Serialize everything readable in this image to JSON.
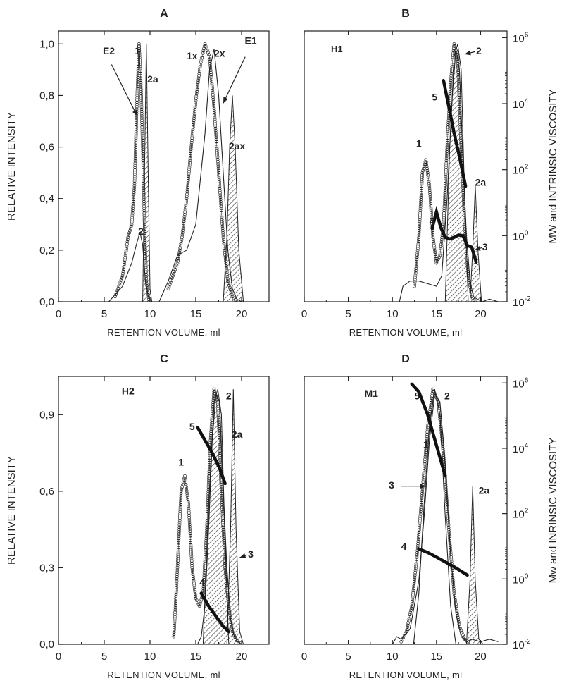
{
  "chart_data": [
    {
      "panel": "A",
      "type": "line",
      "tag": "",
      "xlabel": "RETENTION VOLUME, ml",
      "ylabel": "RELATIVE INTENSITY",
      "xlim": [
        0,
        23
      ],
      "ylim": [
        0,
        1.05
      ],
      "xticks": [
        0,
        5,
        10,
        15,
        20
      ],
      "xticklabels": [
        "0",
        "5",
        "10",
        "15",
        "20"
      ],
      "yticks": [
        0,
        0.2,
        0.4,
        0.6,
        0.8,
        1.0
      ],
      "yticklabels": [
        "0,0",
        "0,2",
        "0,4",
        "0,6",
        "0,8",
        "1,0"
      ],
      "series": [
        {
          "key": "s1",
          "style": "circles",
          "x": [
            6.2,
            7,
            7.6,
            8,
            8.3,
            8.6,
            8.8,
            9.0,
            9.2,
            9.4,
            9.6,
            9.9
          ],
          "y": [
            0.02,
            0.1,
            0.25,
            0.3,
            0.45,
            0.8,
            1.0,
            0.85,
            0.6,
            0.3,
            0.08,
            0.0
          ]
        },
        {
          "key": "s2",
          "style": "thin",
          "x": [
            5.5,
            6,
            7,
            8,
            8.5,
            8.9,
            9.2,
            9.5,
            9.8,
            10.2,
            11,
            12,
            13,
            14,
            15,
            16,
            16.5,
            17,
            17.5,
            18,
            18.5,
            19,
            19.5,
            20,
            20.5
          ],
          "y": [
            0.0,
            0.02,
            0.06,
            0.15,
            0.22,
            0.27,
            0.22,
            0.08,
            0.02,
            0.0,
            0.0,
            0.08,
            0.18,
            0.2,
            0.3,
            0.65,
            0.9,
            0.98,
            0.8,
            0.5,
            0.2,
            0.05,
            0.01,
            0.0,
            0.0
          ]
        },
        {
          "key": "s3",
          "style": "hatched",
          "x": [
            9.2,
            9.4,
            9.6,
            9.8,
            10.0,
            10.2
          ],
          "y": [
            0.0,
            0.5,
            1.0,
            0.5,
            0.05,
            0.0
          ]
        },
        {
          "key": "s4",
          "style": "hatched",
          "x": [
            18,
            18.4,
            18.7,
            19.0,
            19.3,
            19.7,
            20.2
          ],
          "y": [
            0.0,
            0.25,
            0.6,
            0.8,
            0.6,
            0.2,
            0.0
          ]
        },
        {
          "key": "s5",
          "style": "circles",
          "x": [
            12,
            12.5,
            13,
            13.5,
            14,
            14.5,
            15,
            15.5,
            16,
            16.5,
            17,
            17.5,
            18,
            18.5,
            19,
            19.5
          ],
          "y": [
            0.05,
            0.1,
            0.15,
            0.25,
            0.4,
            0.6,
            0.78,
            0.92,
            1.0,
            0.95,
            0.75,
            0.5,
            0.25,
            0.08,
            0.02,
            0.0
          ]
        }
      ],
      "annotations": [
        {
          "text": "E2",
          "x": 5.5,
          "y": 0.96
        },
        {
          "text": "1",
          "x": 8.6,
          "y": 0.96
        },
        {
          "text": "2a",
          "x": 10.3,
          "y": 0.85
        },
        {
          "text": "1x",
          "x": 14.6,
          "y": 0.94
        },
        {
          "text": "2x",
          "x": 17.6,
          "y": 0.95
        },
        {
          "text": "E1",
          "x": 21.0,
          "y": 1.0
        },
        {
          "text": "2ax",
          "x": 19.5,
          "y": 0.59
        },
        {
          "text": "2",
          "x": 9.0,
          "y": 0.26
        }
      ],
      "arrows": [
        {
          "x1": 5.8,
          "y1": 0.92,
          "x2": 8.6,
          "y2": 0.72
        },
        {
          "x1": 20.4,
          "y1": 0.95,
          "x2": 18.0,
          "y2": 0.77
        }
      ]
    },
    {
      "panel": "B",
      "type": "line",
      "tag": "H1",
      "xlabel": "RETENTION VOLUME, ml",
      "ylabel": "",
      "y2label": "MW and INTRINSIC VISCOSITY",
      "xlim": [
        0,
        23
      ],
      "ylim": [
        0,
        1.05
      ],
      "xticks": [
        0,
        5,
        10,
        15,
        20
      ],
      "xticklabels": [
        "0",
        "5",
        "10",
        "15",
        "20"
      ],
      "y2ticks": [
        -2,
        0,
        2,
        4,
        6
      ],
      "y2ticklabels": [
        {
          "base": "10",
          "exp": "-2"
        },
        {
          "base": "10",
          "exp": "0"
        },
        {
          "base": "10",
          "exp": "2"
        },
        {
          "base": "10",
          "exp": "4"
        },
        {
          "base": "10",
          "exp": "6"
        }
      ],
      "y2lim": [
        -2,
        6.2
      ],
      "series": [
        {
          "key": "s1",
          "style": "circles",
          "x": [
            12.5,
            13,
            13.4,
            13.8,
            14.2,
            14.6,
            15,
            15.4,
            15.8,
            16.2,
            16.6,
            17,
            17.4,
            17.8,
            18.2,
            18.6,
            19,
            19.4
          ],
          "y": [
            0.06,
            0.25,
            0.5,
            0.55,
            0.45,
            0.25,
            0.15,
            0.18,
            0.3,
            0.6,
            0.85,
            1.0,
            0.95,
            0.6,
            0.3,
            0.1,
            0.02,
            0.0
          ]
        },
        {
          "key": "s2",
          "style": "thin",
          "x": [
            10.8,
            11.2,
            12,
            13,
            14,
            15,
            15.6,
            16.2,
            16.8,
            17.2,
            17.6,
            18,
            18.4,
            18.8,
            19.2,
            19.6,
            20.2,
            21,
            22
          ],
          "y": [
            0.0,
            0.06,
            0.08,
            0.08,
            0.07,
            0.06,
            0.1,
            0.4,
            0.8,
            0.98,
            0.9,
            0.55,
            0.25,
            0.08,
            0.02,
            0.01,
            0.0,
            0.01,
            0.0
          ]
        },
        {
          "key": "s3",
          "style": "hatched",
          "x": [
            16,
            16.5,
            17,
            17.4,
            17.8,
            18.2,
            18.6
          ],
          "y": [
            0.0,
            0.6,
            0.95,
            1.0,
            0.9,
            0.4,
            0.0
          ]
        },
        {
          "key": "s4",
          "style": "hatched",
          "x": [
            18.8,
            19.1,
            19.4,
            19.7,
            20.1
          ],
          "y": [
            0.0,
            0.2,
            0.45,
            0.2,
            0.0
          ]
        },
        {
          "key": "s5",
          "style": "thick2",
          "x": [
            14.5,
            15,
            15.5,
            16,
            16.5,
            17,
            17.5,
            18,
            18.5,
            19,
            19.5
          ],
          "y": [
            0.22,
            0.72,
            0.24,
            -0.05,
            -0.1,
            -0.05,
            0.02,
            0.0,
            -0.3,
            -0.35,
            -0.8
          ]
        },
        {
          "key": "s6",
          "style": "thick2",
          "x": [
            15.8,
            16.4,
            17,
            17.6,
            18.3
          ],
          "y": [
            4.7,
            3.9,
            3.1,
            2.4,
            1.5
          ]
        }
      ],
      "annotations": [
        {
          "text": "2",
          "x": 19.8,
          "y": 0.96
        },
        {
          "text": "5",
          "x": 14.8,
          "y": 0.78
        },
        {
          "text": "1",
          "x": 13.0,
          "y": 0.6
        },
        {
          "text": "2a",
          "x": 20.0,
          "y": 0.45
        },
        {
          "text": "4",
          "x": 14.5,
          "y": 0.3
        },
        {
          "text": "3",
          "x": 20.5,
          "y": 0.2
        }
      ],
      "arrows": [
        {
          "x1": 19.4,
          "y1": 0.97,
          "x2": 18.2,
          "y2": 0.96
        },
        {
          "x1": 20.2,
          "y1": 0.21,
          "x2": 19.3,
          "y2": 0.2
        }
      ]
    },
    {
      "panel": "C",
      "type": "line",
      "tag": "H2",
      "xlabel": "RETENTION VOLUME, ml",
      "ylabel": "RELATIVE INTENSITY",
      "xlim": [
        0,
        23
      ],
      "ylim": [
        0,
        1.05
      ],
      "xticks": [
        0,
        5,
        10,
        15,
        20
      ],
      "xticklabels": [
        "0",
        "5",
        "10",
        "15",
        "20"
      ],
      "yticks": [
        0,
        0.3,
        0.6,
        0.9
      ],
      "yticklabels": [
        "0,0",
        "0,3",
        "0,6",
        "0,9"
      ],
      "series": [
        {
          "key": "s1",
          "style": "circles",
          "x": [
            12.6,
            13,
            13.4,
            13.8,
            14.2,
            14.6,
            15,
            15.4,
            15.8,
            16.2,
            16.6,
            17,
            17.4,
            17.8,
            18.2,
            18.6,
            19,
            19.4,
            19.8
          ],
          "y": [
            0.03,
            0.3,
            0.6,
            0.66,
            0.55,
            0.3,
            0.18,
            0.15,
            0.2,
            0.45,
            0.8,
            1.0,
            0.95,
            0.6,
            0.3,
            0.15,
            0.05,
            0.02,
            0.0
          ]
        },
        {
          "key": "s2",
          "style": "thin",
          "x": [
            15.2,
            15.6,
            16,
            16.4,
            16.8,
            17.2,
            17.6,
            18,
            18.4,
            18.8,
            19.2,
            19.6,
            20,
            20.4
          ],
          "y": [
            0.0,
            0.03,
            0.15,
            0.45,
            0.8,
            0.98,
            0.95,
            0.6,
            0.3,
            0.1,
            0.03,
            0.01,
            0.0,
            0.0
          ]
        },
        {
          "key": "s3",
          "style": "hatched",
          "x": [
            15.8,
            16.4,
            17,
            17.4,
            17.8,
            18.2,
            18.6
          ],
          "y": [
            0.0,
            0.55,
            0.95,
            1.0,
            0.9,
            0.4,
            0.0
          ]
        },
        {
          "key": "s4",
          "style": "hatched",
          "x": [
            18.4,
            18.8,
            19.1,
            19.4,
            19.8,
            20.2
          ],
          "y": [
            0.0,
            0.45,
            1.0,
            0.45,
            0.05,
            0.0
          ]
        },
        {
          "key": "s5",
          "style": "thick",
          "x": [
            15.6,
            16.4,
            17.2,
            18,
            18.6
          ],
          "y": [
            0.2,
            0.15,
            0.11,
            0.07,
            0.05
          ]
        },
        {
          "key": "s6",
          "style": "thick",
          "x": [
            15.2,
            16,
            16.8,
            17.6,
            18.2
          ],
          "y": [
            0.85,
            0.8,
            0.75,
            0.69,
            0.63
          ]
        }
      ],
      "annotations": [
        {
          "text": "H2",
          "x": 7.6,
          "y": 0.98
        },
        {
          "text": "2",
          "x": 18.6,
          "y": 0.96
        },
        {
          "text": "5",
          "x": 14.6,
          "y": 0.84
        },
        {
          "text": "2a",
          "x": 19.5,
          "y": 0.81
        },
        {
          "text": "1",
          "x": 13.4,
          "y": 0.7
        },
        {
          "text": "3",
          "x": 21.0,
          "y": 0.34
        },
        {
          "text": "4",
          "x": 15.7,
          "y": 0.23
        }
      ],
      "arrows": [
        {
          "x1": 20.6,
          "y1": 0.35,
          "x2": 19.8,
          "y2": 0.34
        }
      ]
    },
    {
      "panel": "D",
      "type": "line",
      "tag": "M1",
      "xlabel": "RETENTION VOLUME, ml",
      "ylabel": "",
      "y2label": "Mw and INRINSIC VISCOSITY",
      "xlim": [
        0,
        23
      ],
      "ylim": [
        0,
        1.05
      ],
      "xticks": [
        0,
        5,
        10,
        15,
        20
      ],
      "xticklabels": [
        "0",
        "5",
        "10",
        "15",
        "20"
      ],
      "y2ticks": [
        -2,
        0,
        2,
        4,
        6
      ],
      "y2ticklabels": [
        {
          "base": "10",
          "exp": "-2"
        },
        {
          "base": "10",
          "exp": "0"
        },
        {
          "base": "10",
          "exp": "2"
        },
        {
          "base": "10",
          "exp": "4"
        },
        {
          "base": "10",
          "exp": "6"
        }
      ],
      "y2lim": [
        -2,
        6.2
      ],
      "series": [
        {
          "key": "s1",
          "style": "circles",
          "x": [
            11,
            11.6,
            12.2,
            12.8,
            13.4,
            14,
            14.6,
            15.2,
            15.8,
            16.4,
            17,
            17.6,
            18.2,
            18.8
          ],
          "y": [
            0.01,
            0.05,
            0.15,
            0.35,
            0.6,
            0.85,
            1.0,
            0.95,
            0.75,
            0.45,
            0.2,
            0.07,
            0.02,
            0.0
          ]
        },
        {
          "key": "s2",
          "style": "thin",
          "x": [
            10,
            10.5,
            11,
            12,
            13,
            13.6,
            14.2,
            14.8,
            15.4,
            16,
            16.6,
            17.2,
            17.8,
            18.4,
            19,
            20,
            21,
            22
          ],
          "y": [
            0.0,
            0.03,
            0.02,
            0.06,
            0.25,
            0.5,
            0.8,
            0.98,
            0.95,
            0.7,
            0.35,
            0.12,
            0.03,
            0.01,
            0.02,
            0.01,
            0.02,
            0.01
          ]
        },
        {
          "key": "s3",
          "style": "thin",
          "x": [
            12.4,
            13,
            13.6,
            14.2,
            14.8,
            15.4,
            16,
            16.6,
            17.2
          ],
          "y": [
            0.0,
            0.2,
            0.55,
            0.85,
            1.0,
            0.9,
            0.5,
            0.15,
            0.0
          ]
        },
        {
          "key": "s4",
          "style": "thick",
          "x": [
            12.2,
            13,
            14,
            15,
            16
          ],
          "y": [
            1.02,
            0.99,
            0.9,
            0.78,
            0.66
          ]
        },
        {
          "key": "s5",
          "style": "thick2",
          "x": [
            13,
            14,
            15,
            16,
            17,
            18.5
          ],
          "y": [
            0.92,
            0.81,
            0.67,
            0.52,
            0.37,
            0.12
          ]
        },
        {
          "key": "s6",
          "style": "hatched",
          "x": [
            18.4,
            18.8,
            19.1,
            19.4,
            19.8,
            20.3
          ],
          "y": [
            0.0,
            0.25,
            0.62,
            0.25,
            0.02,
            0.0
          ]
        }
      ],
      "annotations": [
        {
          "text": "M1",
          "x": 7.6,
          "y": 0.97
        },
        {
          "text": "5",
          "x": 12.8,
          "y": 0.96
        },
        {
          "text": "2",
          "x": 16.2,
          "y": 0.96
        },
        {
          "text": "1",
          "x": 13.8,
          "y": 0.77
        },
        {
          "text": "3",
          "x": 9.9,
          "y": 0.61
        },
        {
          "text": "2a",
          "x": 20.4,
          "y": 0.59
        },
        {
          "text": "4",
          "x": 11.3,
          "y": 0.37
        }
      ],
      "arrows": [
        {
          "x1": 11.0,
          "y1": 0.62,
          "x2": 13.8,
          "y2": 0.62
        }
      ]
    }
  ]
}
